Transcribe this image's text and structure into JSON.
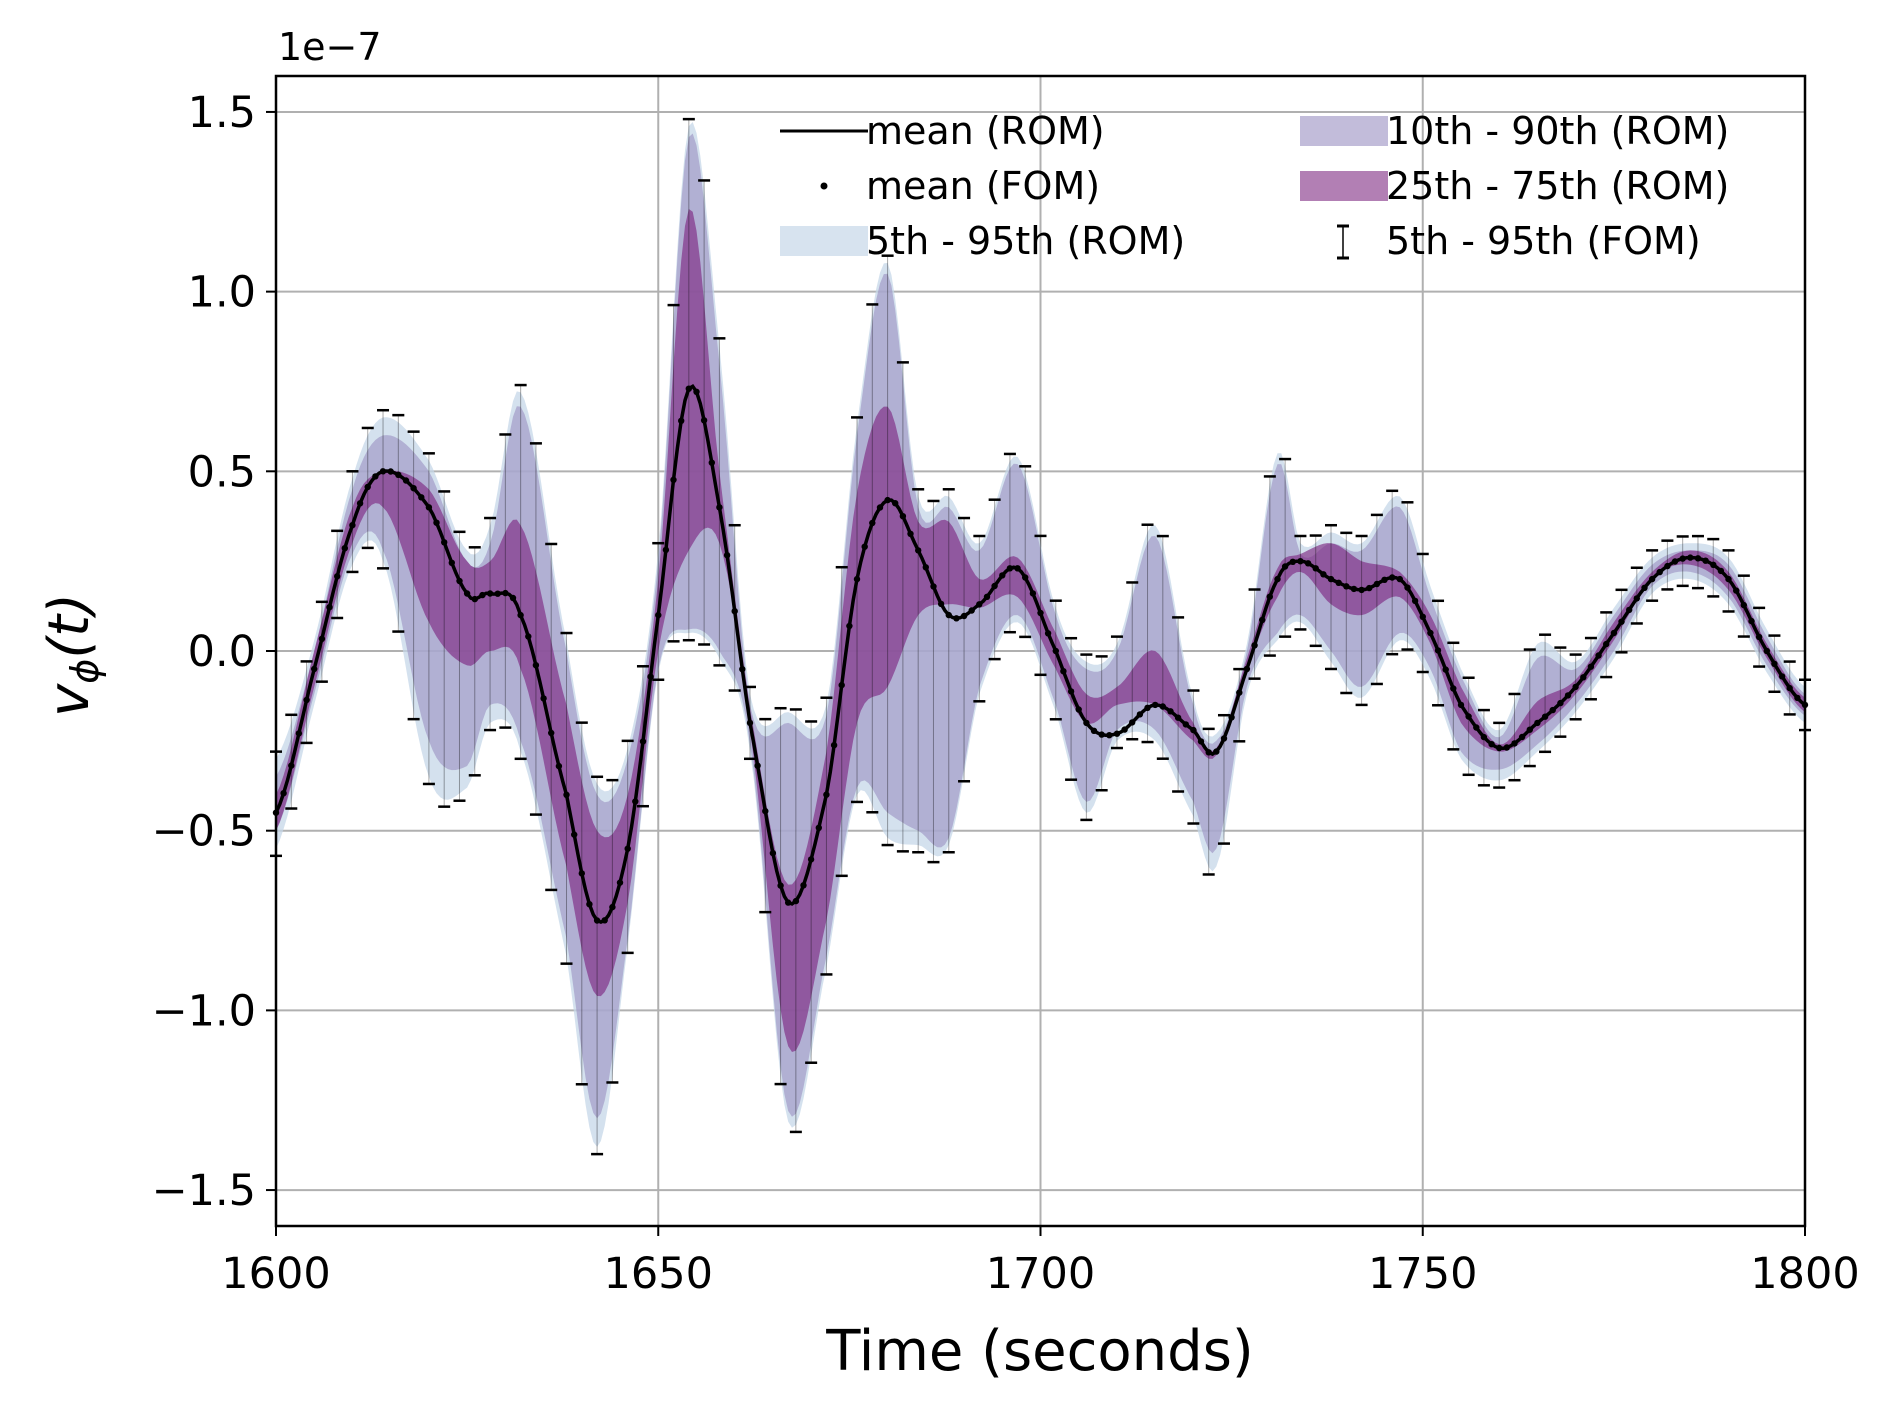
{
  "chart_data": {
    "type": "line",
    "xlabel": "Time (seconds)",
    "ylabel_main": "v",
    "ylabel_sub": "ϕ",
    "ylabel_rest": "(t)",
    "y_offset_text": "1e−7",
    "y_scale": 1e-07,
    "xlim": [
      1600,
      1800
    ],
    "ylim": [
      -1.6,
      1.6
    ],
    "grid": true,
    "legend_position": "top-right",
    "x_ticks": [
      1600,
      1650,
      1700,
      1750,
      1800
    ],
    "x_tick_labels": [
      "1600",
      "1650",
      "1700",
      "1750",
      "1800"
    ],
    "y_ticks": [
      1.5,
      1.0,
      0.5,
      0.0,
      -0.5,
      -1.0,
      -1.5
    ],
    "y_tick_labels": [
      "1.5",
      "1.0",
      "0.5",
      "0.0",
      "−0.5",
      "−1.0",
      "−1.5"
    ],
    "legend": [
      {
        "label": "mean (ROM)",
        "kind": "line"
      },
      {
        "label": "mean (FOM)",
        "kind": "dot"
      },
      {
        "label": "5th - 95th (ROM)",
        "kind": "band5"
      },
      {
        "label": "10th - 90th (ROM)",
        "kind": "band10"
      },
      {
        "label": "25th - 75th (ROM)",
        "kind": "band25"
      },
      {
        "label": "5th - 95th (FOM)",
        "kind": "errorbar"
      }
    ],
    "colors": {
      "band5": "#c6d7e8",
      "band10": "#9a8fc2",
      "band25": "#7e2a82",
      "mean": "#000000"
    },
    "series": [
      {
        "name": "mean (ROM)",
        "x": [
          1600,
          1605,
          1610,
          1614,
          1620,
          1625,
          1628,
          1632,
          1638,
          1642,
          1646,
          1650,
          1654,
          1658,
          1662,
          1667,
          1672,
          1676,
          1680,
          1684,
          1688,
          1692,
          1697,
          1702,
          1706,
          1710,
          1715,
          1720,
          1723,
          1727,
          1731,
          1734,
          1738,
          1742,
          1747,
          1751,
          1755,
          1760,
          1765,
          1770,
          1775,
          1780,
          1785,
          1790,
          1795,
          1800
        ],
        "mean": [
          -0.45,
          -0.05,
          0.35,
          0.5,
          0.4,
          0.16,
          0.16,
          0.1,
          -0.4,
          -0.75,
          -0.55,
          0.1,
          0.73,
          0.4,
          -0.2,
          -0.7,
          -0.4,
          0.2,
          0.42,
          0.28,
          0.1,
          0.13,
          0.23,
          0.0,
          -0.2,
          -0.23,
          -0.15,
          -0.22,
          -0.28,
          -0.05,
          0.2,
          0.25,
          0.2,
          0.17,
          0.2,
          0.05,
          -0.15,
          -0.27,
          -0.2,
          -0.1,
          0.05,
          0.2,
          0.26,
          0.2,
          0.0,
          -0.15
        ],
        "p25": [
          -0.5,
          -0.1,
          0.3,
          0.4,
          0.08,
          -0.04,
          0.0,
          -0.05,
          -0.6,
          -0.96,
          -0.7,
          0.0,
          0.28,
          0.3,
          -0.22,
          -1.1,
          -0.75,
          -0.2,
          -0.1,
          0.1,
          0.13,
          0.12,
          0.15,
          -0.05,
          -0.2,
          -0.15,
          -0.15,
          -0.25,
          -0.29,
          -0.05,
          0.15,
          0.22,
          0.13,
          0.1,
          0.15,
          0.02,
          -0.2,
          -0.28,
          -0.22,
          -0.12,
          0.03,
          0.2,
          0.24,
          0.17,
          -0.02,
          -0.17
        ],
        "p75": [
          -0.4,
          0.0,
          0.4,
          0.5,
          0.45,
          0.25,
          0.25,
          0.35,
          -0.15,
          -0.5,
          -0.4,
          0.2,
          1.23,
          0.5,
          -0.16,
          -0.65,
          -0.28,
          0.44,
          0.68,
          0.36,
          0.36,
          0.2,
          0.26,
          0.05,
          -0.12,
          -0.1,
          0.0,
          -0.2,
          -0.27,
          -0.02,
          0.23,
          0.27,
          0.3,
          0.25,
          0.22,
          0.1,
          -0.1,
          -0.26,
          -0.14,
          -0.08,
          0.08,
          0.22,
          0.28,
          0.22,
          0.02,
          -0.13
        ],
        "p10": [
          -0.5,
          -0.12,
          0.27,
          0.28,
          -0.25,
          -0.32,
          -0.15,
          -0.25,
          -0.8,
          -1.3,
          -0.8,
          -0.05,
          0.06,
          0.0,
          -0.26,
          -1.28,
          -0.85,
          -0.38,
          -0.45,
          -0.5,
          -0.52,
          -0.1,
          0.1,
          -0.15,
          -0.42,
          -0.22,
          -0.22,
          -0.42,
          -0.55,
          -0.1,
          0.05,
          0.1,
          0.0,
          -0.1,
          0.05,
          -0.05,
          -0.28,
          -0.33,
          -0.26,
          -0.15,
          0.0,
          0.18,
          0.22,
          0.15,
          -0.04,
          -0.18
        ],
        "p90": [
          -0.35,
          0.0,
          0.45,
          0.6,
          0.5,
          0.25,
          0.3,
          0.68,
          0.0,
          -0.4,
          -0.3,
          0.25,
          1.43,
          0.8,
          -0.15,
          -0.2,
          -0.18,
          0.6,
          1.05,
          0.4,
          0.4,
          0.28,
          0.52,
          0.1,
          -0.05,
          0.0,
          0.32,
          -0.15,
          -0.25,
          0.0,
          0.52,
          0.27,
          0.3,
          0.28,
          0.4,
          0.15,
          -0.07,
          -0.24,
          -0.02,
          -0.05,
          0.1,
          0.24,
          0.28,
          0.24,
          0.04,
          -0.12
        ],
        "p5": [
          -0.55,
          -0.15,
          0.24,
          0.25,
          -0.35,
          -0.38,
          -0.2,
          -0.28,
          -0.85,
          -1.38,
          -0.82,
          -0.06,
          0.05,
          -0.02,
          -0.28,
          -1.31,
          -0.88,
          -0.4,
          -0.52,
          -0.54,
          -0.54,
          -0.12,
          0.08,
          -0.17,
          -0.45,
          -0.25,
          -0.25,
          -0.46,
          -0.6,
          -0.12,
          0.03,
          0.08,
          -0.03,
          -0.13,
          0.03,
          -0.08,
          -0.3,
          -0.36,
          -0.28,
          -0.17,
          -0.02,
          0.16,
          0.2,
          0.13,
          -0.06,
          -0.2
        ],
        "p95": [
          -0.3,
          0.03,
          0.48,
          0.65,
          0.53,
          0.28,
          0.35,
          0.72,
          0.03,
          -0.37,
          -0.27,
          0.28,
          1.46,
          0.85,
          -0.12,
          -0.17,
          -0.15,
          0.63,
          1.08,
          0.43,
          0.43,
          0.3,
          0.54,
          0.12,
          -0.03,
          0.02,
          0.35,
          -0.13,
          -0.23,
          0.02,
          0.55,
          0.3,
          0.33,
          0.3,
          0.43,
          0.18,
          -0.05,
          -0.22,
          0.02,
          -0.03,
          0.12,
          0.26,
          0.3,
          0.26,
          0.06,
          -0.1
        ]
      },
      {
        "name": "mean (FOM)",
        "x_start": 1600,
        "x_end": 1800,
        "x_step": 1
      },
      {
        "name": "5th - 95th (FOM)",
        "x_start": 1600,
        "x_end": 1800,
        "x_step": 2
      }
    ]
  }
}
